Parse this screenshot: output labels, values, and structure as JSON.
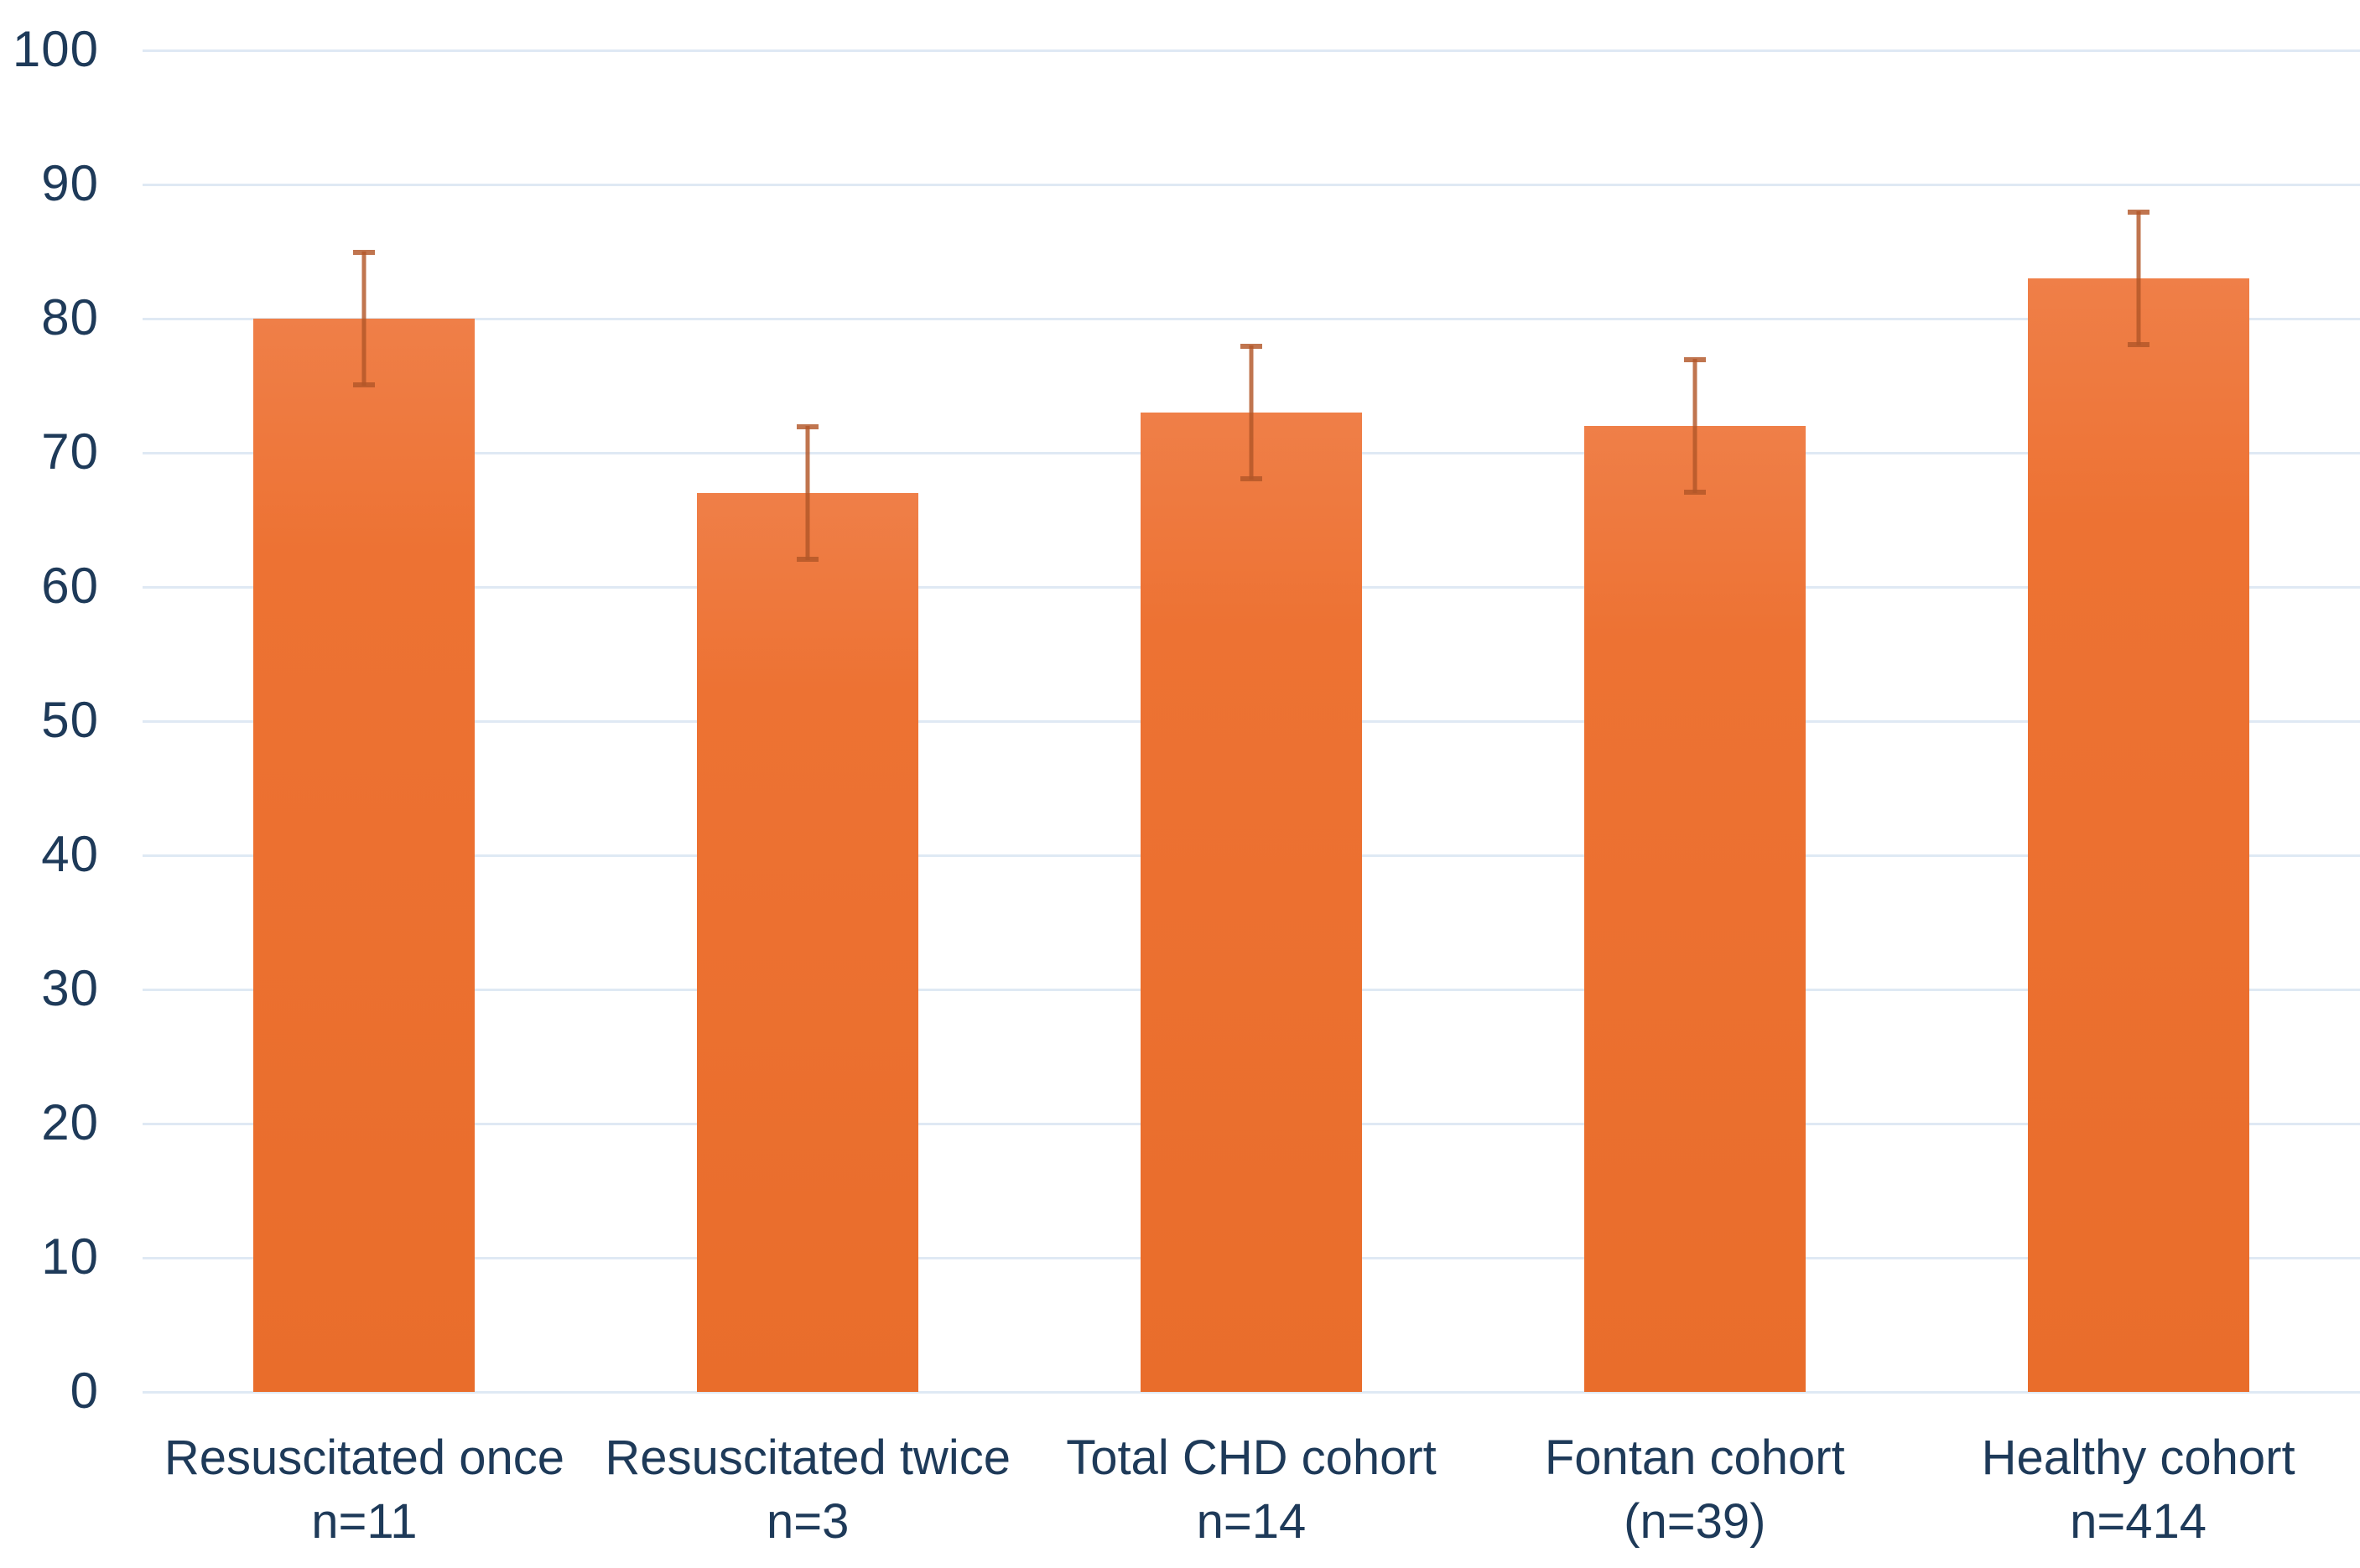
{
  "chart_data": {
    "type": "bar",
    "title": "",
    "xlabel": "",
    "ylabel": "",
    "categories": [
      {
        "label": "Resuscitated once",
        "sublabel": "n=11"
      },
      {
        "label": "Resuscitated twice",
        "sublabel": "n=3"
      },
      {
        "label": "Total CHD cohort",
        "sublabel": "n=14"
      },
      {
        "label": "Fontan cohort",
        "sublabel": "(n=39)"
      },
      {
        "label": "Healthy cohort",
        "sublabel": "n=414"
      }
    ],
    "values": [
      80,
      67,
      73,
      72,
      83
    ],
    "error_margin": [
      5,
      5,
      5,
      5,
      5
    ],
    "error_low": [
      75,
      62,
      68,
      67,
      78
    ],
    "error_high": [
      85,
      72,
      78,
      77,
      88
    ],
    "ylim": [
      0,
      100
    ],
    "ytick_step": 10,
    "ytick_labels": [
      "0",
      "10",
      "20",
      "30",
      "40",
      "50",
      "60",
      "70",
      "80",
      "90",
      "100"
    ],
    "grid": "horizontal",
    "legend": "none",
    "colors": {
      "bar_top": "#ef7f48",
      "bar_mid": "#ed7233",
      "bar_bottom": "#e96d2b",
      "error_line": "rgba(178,87,40,0.82)",
      "grid_line": "#dfe9f4",
      "tick_text": "#1e3a59",
      "background": "#ffffff"
    }
  }
}
